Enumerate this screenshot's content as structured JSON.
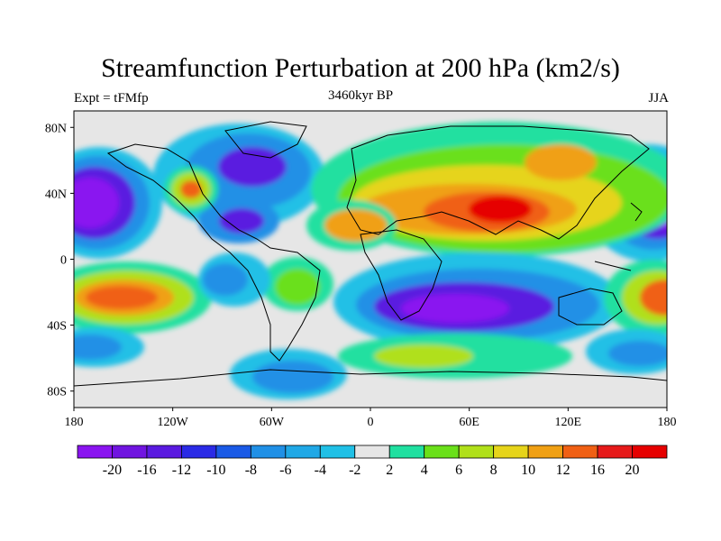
{
  "title": "Streamfunction Perturbation at 200 hPa (km2/s)",
  "subtitle_left": "Expt = tFMfp",
  "subtitle_center": "3460kyr BP",
  "subtitle_right": "JJA",
  "lat_labels": [
    "80N",
    "40N",
    "0",
    "40S",
    "80S"
  ],
  "lat_values": [
    80,
    40,
    0,
    -40,
    -80
  ],
  "lon_labels": [
    "180",
    "120W",
    "60W",
    "0",
    "60E",
    "120E",
    "180"
  ],
  "lon_values": [
    -180,
    -120,
    -60,
    0,
    60,
    120,
    180
  ],
  "colorbar": {
    "labels": [
      "-20",
      "-16",
      "-12",
      "-10",
      "-8",
      "-6",
      "-4",
      "-2",
      "2",
      "4",
      "6",
      "8",
      "10",
      "12",
      "16",
      "20"
    ],
    "colors": [
      "#8a14f0",
      "#7014e0",
      "#5a1ae0",
      "#2a2ae6",
      "#1a5ae6",
      "#2090e6",
      "#20a8e6",
      "#20c0e6",
      "#e6e6e6",
      "#20e0a0",
      "#6ae01a",
      "#b0e01a",
      "#e6d41a",
      "#f0a014",
      "#f06014",
      "#e61a1a",
      "#e60000"
    ]
  }
}
